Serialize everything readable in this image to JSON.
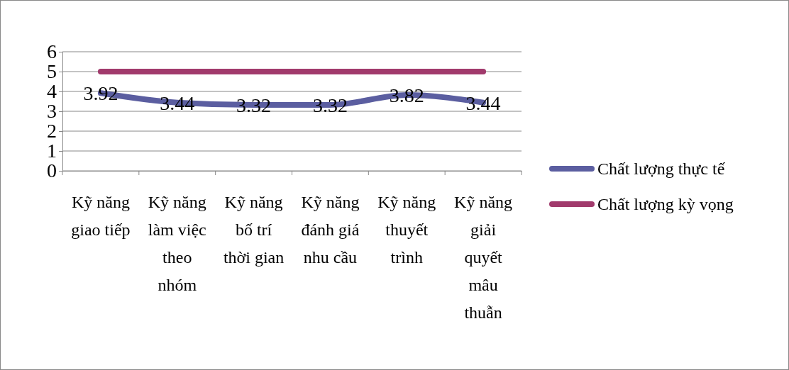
{
  "chart_data": {
    "type": "line",
    "categories": [
      "Kỹ năng giao tiếp",
      "Kỹ năng làm việc theo nhóm",
      "Kỹ năng bố trí thời gian",
      "Kỹ năng đánh giá nhu cầu",
      "Kỹ năng thuyết trình",
      "Kỹ năng giải quyết mâu thuẫn"
    ],
    "series": [
      {
        "name": "Chất lượng thực tế",
        "color": "#5b5ea0",
        "values": [
          3.92,
          3.44,
          3.32,
          3.32,
          3.82,
          3.44
        ],
        "value_labels": [
          "3.92",
          "3.44",
          "3.32",
          "3.32",
          "3.82",
          "3.44"
        ]
      },
      {
        "name": "Chất lượng kỳ vọng",
        "color": "#a13a6c",
        "values": [
          5,
          5,
          5,
          5,
          5,
          5
        ]
      }
    ],
    "ylim": [
      0,
      6
    ],
    "yticks": [
      0,
      1,
      2,
      3,
      4,
      5,
      6
    ],
    "grid": "y",
    "legend": "right",
    "marker": "none",
    "line_style": "solid"
  }
}
